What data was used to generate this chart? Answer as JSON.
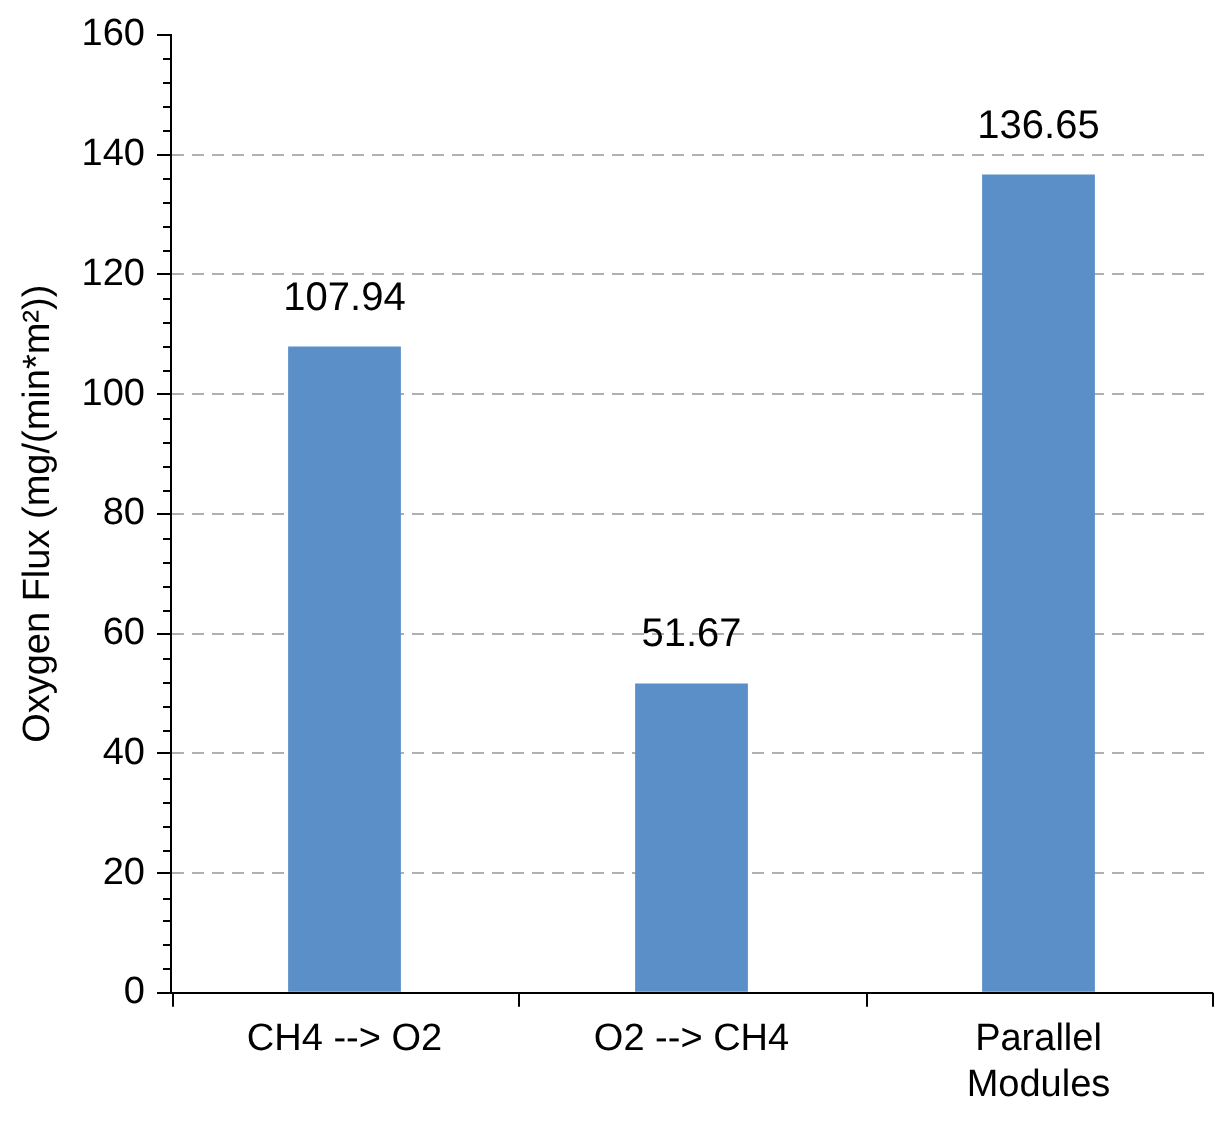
{
  "chart_data": {
    "type": "bar",
    "ylabel": "Oxygen Flux (mg/(min*m²))",
    "categories": [
      "CH4 --> O2",
      "O2 --> CH4",
      "Parallel Modules"
    ],
    "values": [
      107.94,
      51.67,
      136.65
    ],
    "color": "#5b8fc7",
    "ylim": [
      0,
      160
    ],
    "yticks": [
      0,
      20,
      40,
      60,
      80,
      100,
      120,
      140,
      160
    ],
    "grid": "y",
    "data_labels": true
  }
}
